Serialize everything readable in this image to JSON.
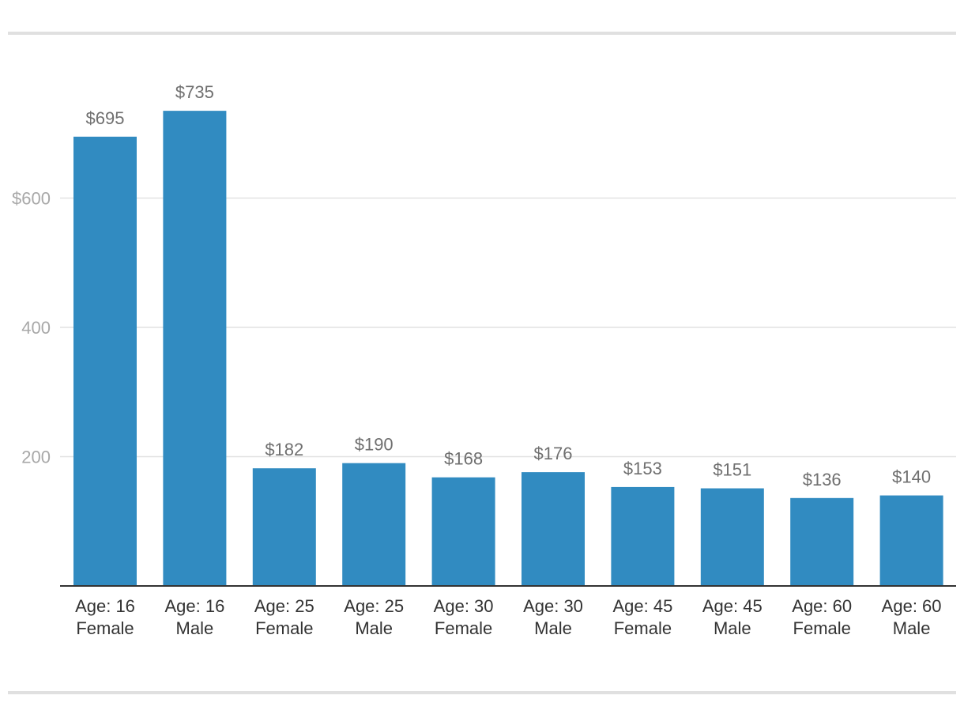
{
  "colors": {
    "bar": "#318bc1",
    "grid": "#e2e2e2",
    "axis": "#333333"
  },
  "chart_data": {
    "type": "bar",
    "categories": [
      [
        "Age: 16",
        "Female"
      ],
      [
        "Age: 16",
        "Male"
      ],
      [
        "Age: 25",
        "Female"
      ],
      [
        "Age: 25",
        "Male"
      ],
      [
        "Age: 30",
        "Female"
      ],
      [
        "Age: 30",
        "Male"
      ],
      [
        "Age: 45",
        "Female"
      ],
      [
        "Age: 45",
        "Male"
      ],
      [
        "Age: 60",
        "Female"
      ],
      [
        "Age: 60",
        "Male"
      ]
    ],
    "values": [
      695,
      735,
      182,
      190,
      168,
      176,
      153,
      151,
      136,
      140
    ],
    "value_labels": [
      "$695",
      "$735",
      "$182",
      "$190",
      "$168",
      "$176",
      "$153",
      "$151",
      "$136",
      "$140"
    ],
    "y_ticks": [
      {
        "value": 200,
        "label": "200"
      },
      {
        "value": 400,
        "label": "400"
      },
      {
        "value": 600,
        "label": "$600"
      }
    ],
    "ylim": [
      0,
      800
    ],
    "grid": true,
    "legend": "none"
  }
}
